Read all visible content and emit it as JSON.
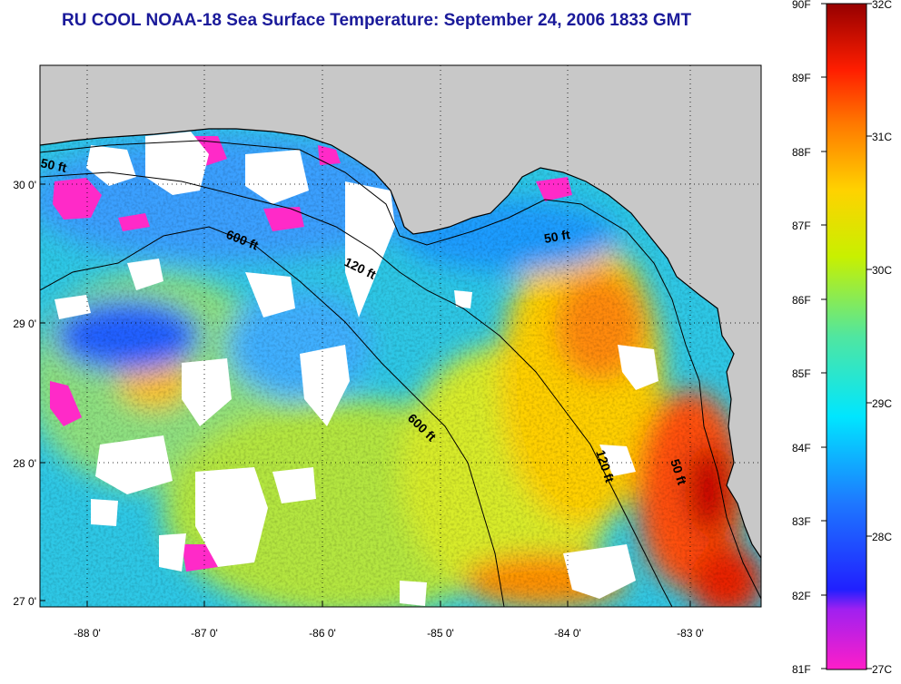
{
  "title": "RU COOL  NOAA-18  Sea Surface Temperature:  September 24, 2006 1833 GMT",
  "map": {
    "lat_ticks": [
      "30 0'",
      "29 0'",
      "28 0'",
      "27 0'"
    ],
    "lon_ticks": [
      "-88 0'",
      "-87 0'",
      "-86 0'",
      "-85 0'",
      "-84 0'",
      "-83 0'"
    ],
    "contour_labels": [
      "50 ft",
      "600 ft",
      "120 ft",
      "50 ft",
      "600 ft",
      "120 ft",
      "50 ft"
    ],
    "colors": {
      "land": "#c8c8c8",
      "cloud": "#ffffff",
      "warm": "#c80000",
      "cool": "#1e3cff"
    }
  },
  "colorbar": {
    "fahrenheit": [
      "90F",
      "89F",
      "88F",
      "87F",
      "86F",
      "85F",
      "84F",
      "83F",
      "82F",
      "81F"
    ],
    "celsius": [
      "32C",
      "31C",
      "30C",
      "29C",
      "28C",
      "27C"
    ]
  }
}
